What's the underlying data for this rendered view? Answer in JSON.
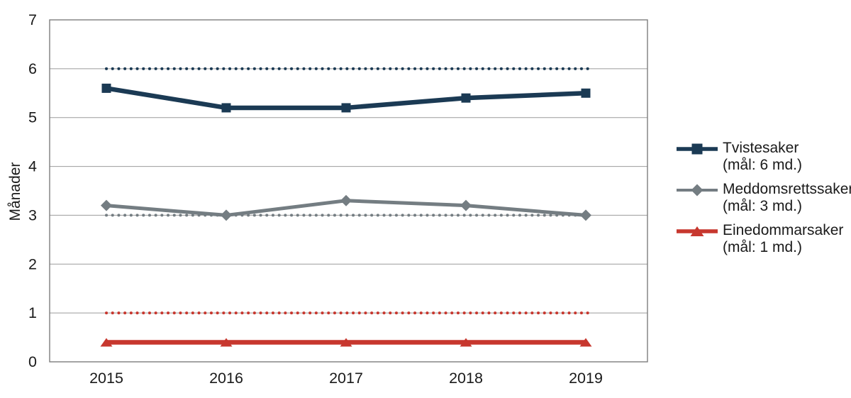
{
  "chart_data": {
    "type": "line",
    "title": "",
    "xlabel": "",
    "ylabel": "Månader",
    "categories": [
      "2015",
      "2016",
      "2017",
      "2018",
      "2019"
    ],
    "ylim": [
      0,
      7
    ],
    "yticks": [
      0,
      1,
      2,
      3,
      4,
      5,
      6,
      7
    ],
    "grid": true,
    "legend_position": "right",
    "series": [
      {
        "name": "Tvistesaker",
        "target_label": "(mål: 6 md.)",
        "values": [
          5.6,
          5.2,
          5.2,
          5.4,
          5.5
        ],
        "target": 6,
        "color": "#1b3a54",
        "marker": "square"
      },
      {
        "name": "Meddomsrettssaker",
        "target_label": "(mål: 3 md.)",
        "values": [
          3.2,
          3.0,
          3.3,
          3.2,
          3.0
        ],
        "target": 3,
        "color": "#747d82",
        "marker": "diamond"
      },
      {
        "name": "Einedommarsaker",
        "target_label": "(mål: 1 md.)",
        "values": [
          0.4,
          0.4,
          0.4,
          0.4,
          0.4
        ],
        "target": 1,
        "color": "#c7372e",
        "marker": "triangle"
      }
    ],
    "frame_color": "#7d7d7d",
    "gridline_color": "#9b9b9b",
    "text_color": "#1a1a1a"
  }
}
